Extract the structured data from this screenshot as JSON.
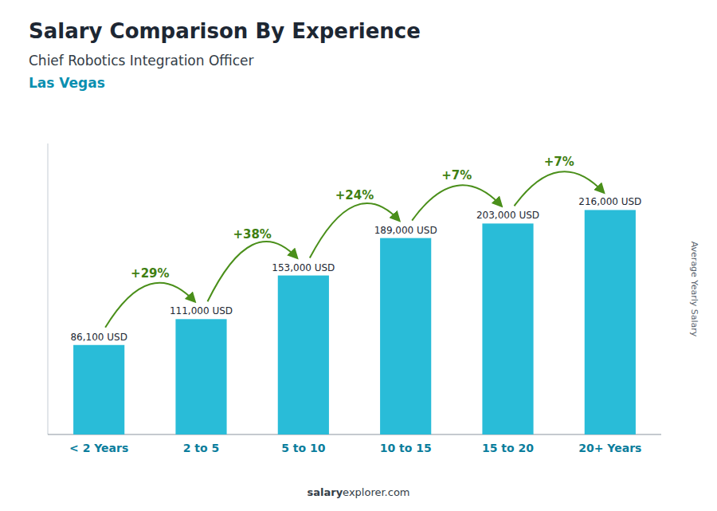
{
  "chart_data": {
    "type": "bar",
    "title": "Salary Comparison By Experience",
    "subtitle": "Chief Robotics Integration Officer",
    "annotation": "Las Vegas",
    "ylabel": "Average Yearly Salary",
    "footer": [
      "salary",
      "explorer.com"
    ],
    "categories": [
      "< 2 Years",
      "2 to 5",
      "5 to 10",
      "10 to 15",
      "15 to 20",
      "20+ Years"
    ],
    "values": [
      86100,
      111000,
      153000,
      189000,
      203000,
      216000
    ],
    "value_labels": [
      "86,100 USD",
      "111,000 USD",
      "153,000 USD",
      "189,000 USD",
      "203,000 USD",
      "216,000 USD"
    ],
    "annotations": [
      "+29%",
      "+38%",
      "+24%",
      "+7%",
      "+7%"
    ],
    "color": "#29bcd8",
    "ylim": [
      0,
      280000
    ],
    "data_labels": true,
    "tick_labels": "x",
    "grid": false
  }
}
